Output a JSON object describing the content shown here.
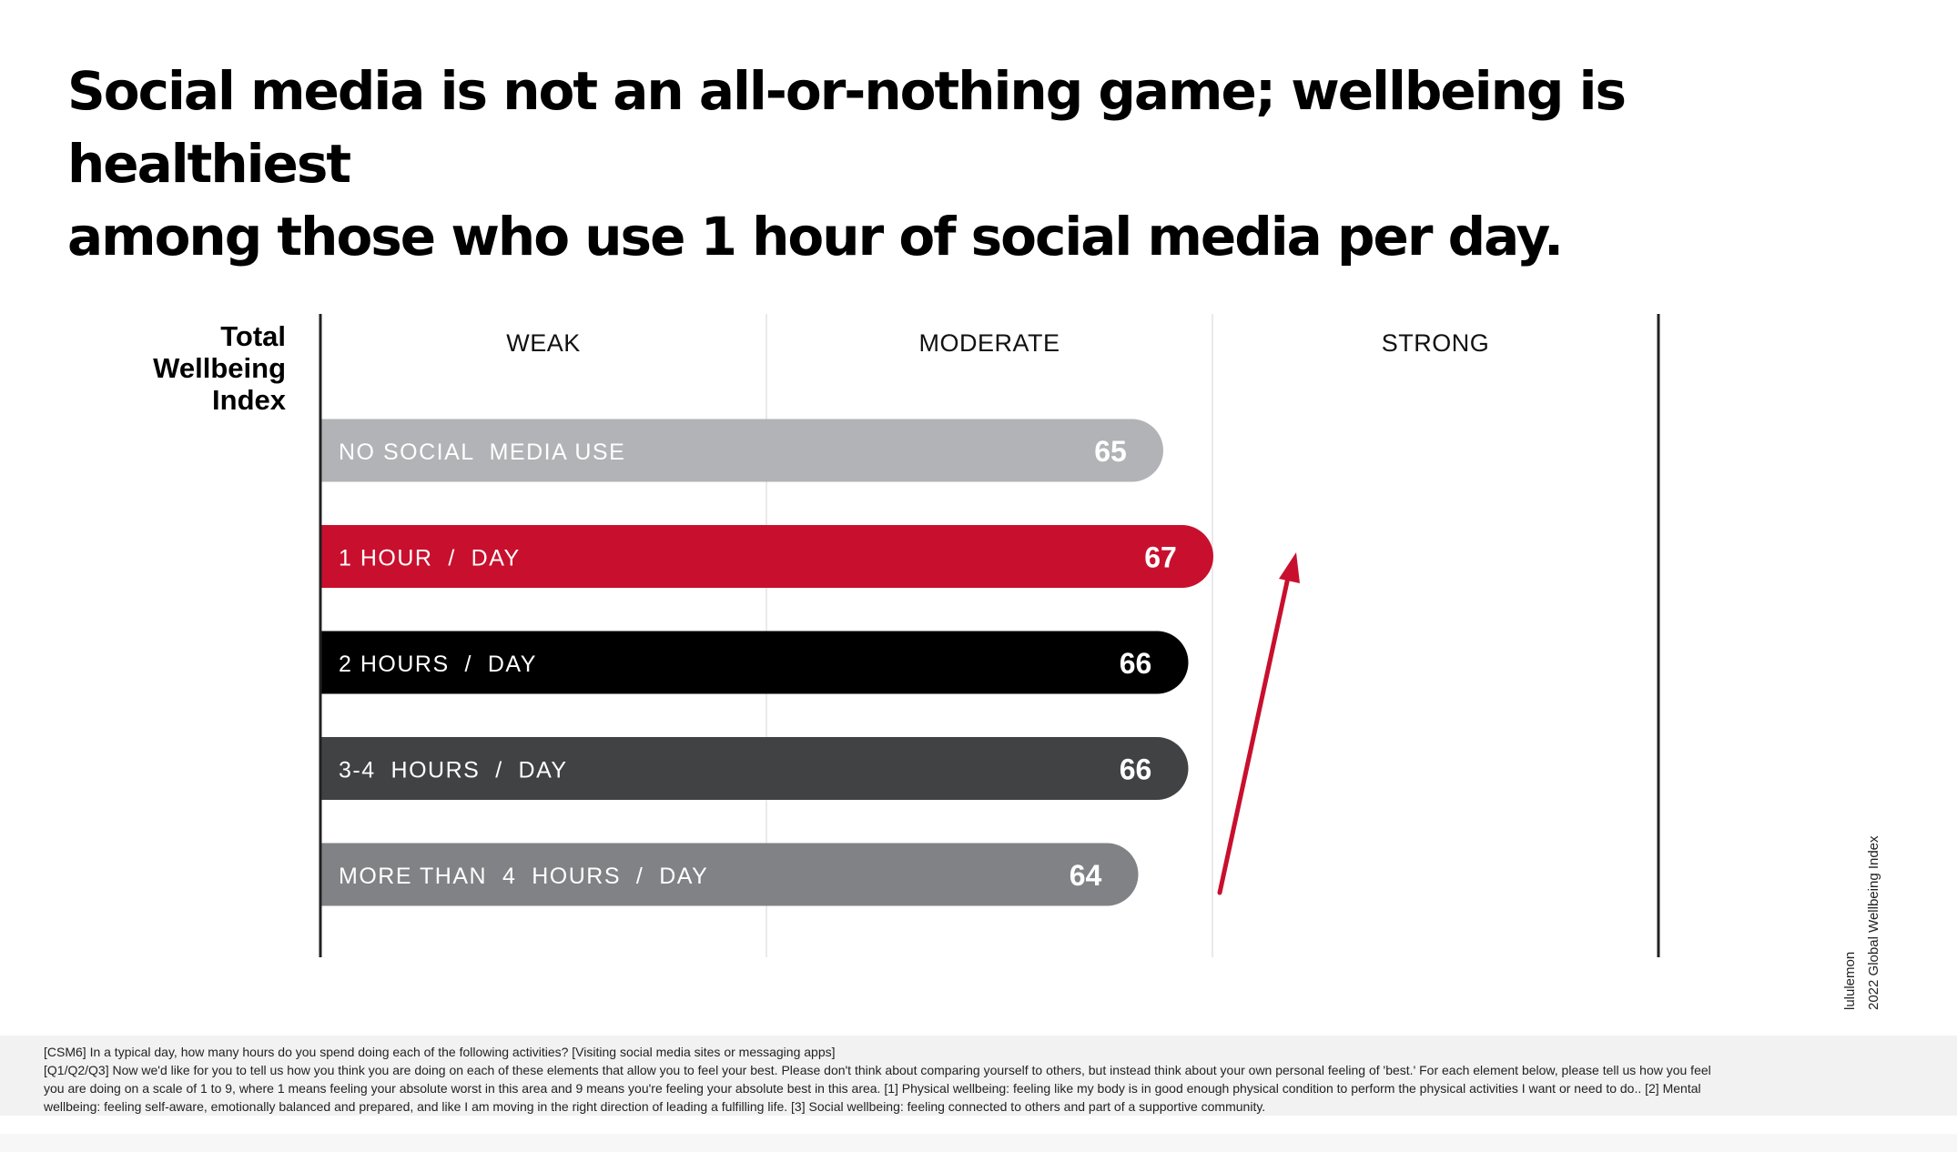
{
  "title": {
    "line1": "Social media is not an all-or-nothing game; wellbeing is healthiest",
    "line2": "among those who use 1 hour of social media per day."
  },
  "index_label": {
    "line1": "Total",
    "line2": "Wellbeing",
    "line3": "Index"
  },
  "chart_data": {
    "type": "bar",
    "orientation": "horizontal",
    "zones": [
      "WEAK",
      "MODERATE",
      "STRONG"
    ],
    "categories": [
      "NO SOCIAL  MEDIA USE",
      "1 HOUR  /  DAY",
      "2 HOURS  /  DAY",
      "3-4  HOURS  /  DAY",
      "MORE THAN  4  HOURS  /  DAY"
    ],
    "values": [
      65,
      67,
      66,
      66,
      64
    ],
    "value_labels": [
      "65",
      "67",
      "66",
      "66",
      "64"
    ],
    "colors": [
      "#b1b3b6",
      "#c8102e",
      "#000000",
      "#414244",
      "#808285"
    ],
    "highlight_category": "1 HOUR  /  DAY",
    "arrow_color": "#c8102e",
    "grid": true,
    "legend": "none"
  },
  "side_note": {
    "line1": "lululemon",
    "line2": "2022 Global Wellbeing Index"
  },
  "footnote": {
    "line1": "[CSM6]  In a typical day, how many hours do you spend doing each of the following activities? [Visiting social media sites or messaging apps]",
    "line2": "[Q1/Q2/Q3] Now we'd like for you to tell us how you think you are doing on each of these elements that allow you to feel your best.  Please don't think about comparing yourself to others, but instead think about your own personal feeling of 'best.' For each element below, please tell us how you feel",
    "line3": "you are doing on a scale of 1 to 9, where 1 means feeling your absolute worst in this area and 9 means you're feeling your absolute best in this area. [1] Physical wellbeing: feeling like my body is in good enough physical condition to perform the physical activities I want or need to do.. [2] Mental",
    "line4": "wellbeing: feeling self-aware, emotionally balanced and prepared, and like I am moving in the right direction of leading a fulfilling life. [3] Social wellbeing: feeling connected  to others and part of a supportive community."
  }
}
